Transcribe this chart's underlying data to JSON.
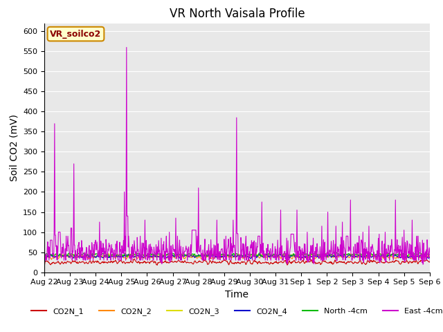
{
  "title": "VR North Vaisala Profile",
  "xlabel": "Time",
  "ylabel": "Soil CO2 (mV)",
  "annotation": "VR_soilco2",
  "ylim": [
    0,
    620
  ],
  "yticks": [
    0,
    50,
    100,
    150,
    200,
    250,
    300,
    350,
    400,
    450,
    500,
    550,
    600
  ],
  "background_color": "#e8e8e8",
  "series_colors": {
    "CO2N_1": "#cc0000",
    "CO2N_2": "#ff8800",
    "CO2N_3": "#dddd00",
    "CO2N_4": "#0000cc",
    "North_4cm": "#00bb00",
    "East_4cm": "#cc00cc"
  },
  "xtick_labels": [
    "Aug 22",
    "Aug 23",
    "Aug 24",
    "Aug 25",
    "Aug 26",
    "Aug 27",
    "Aug 28",
    "Aug 29",
    "Aug 30",
    "Aug 31",
    "Sep 1",
    "Sep 2",
    "Sep 3",
    "Sep 4",
    "Sep 5",
    "Sep 6"
  ],
  "title_fontsize": 12,
  "axis_fontsize": 10,
  "tick_fontsize": 8,
  "legend_fontsize": 8
}
